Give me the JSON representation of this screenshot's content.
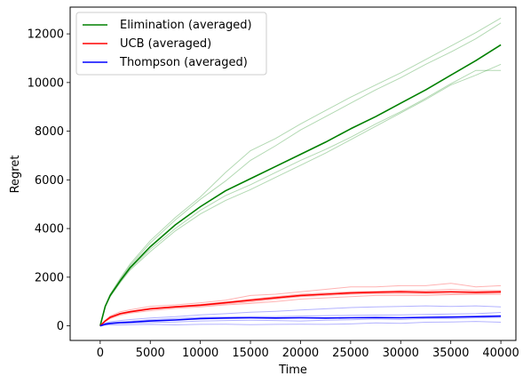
{
  "chart_data": {
    "type": "line",
    "xlabel": "Time",
    "ylabel": "Regret",
    "xlim": [
      -3000,
      41500
    ],
    "ylim": [
      -600,
      13100
    ],
    "xticks": [
      0,
      5000,
      10000,
      15000,
      20000,
      25000,
      30000,
      35000,
      40000
    ],
    "yticks": [
      0,
      2000,
      4000,
      6000,
      8000,
      10000,
      12000
    ],
    "legend_position": "top-left",
    "x": [
      0,
      500,
      1000,
      2000,
      3000,
      5000,
      7500,
      10000,
      12500,
      15000,
      17500,
      20000,
      22500,
      25000,
      27500,
      30000,
      32500,
      35000,
      37500,
      40000
    ],
    "series": [
      {
        "name": "Elimination (averaged)",
        "color": "#008000",
        "values": [
          0,
          800,
          1250,
          1850,
          2400,
          3250,
          4150,
          4900,
          5550,
          6050,
          6550,
          7050,
          7550,
          8100,
          8600,
          9150,
          9700,
          10300,
          10900,
          11550
        ],
        "runs": [
          [
            0,
            820,
            1300,
            1950,
            2550,
            3500,
            4450,
            5300,
            6300,
            7200,
            7700,
            8300,
            8850,
            9400,
            9900,
            10400,
            10950,
            11500,
            12050,
            12650
          ],
          [
            0,
            810,
            1270,
            1900,
            2480,
            3400,
            4350,
            5200,
            5950,
            6800,
            7400,
            8050,
            8600,
            9150,
            9700,
            10200,
            10750,
            11250,
            11800,
            12450
          ],
          [
            0,
            790,
            1230,
            1820,
            2350,
            3150,
            4000,
            4750,
            5350,
            5800,
            6300,
            6800,
            7250,
            7750,
            8300,
            8800,
            9350,
            9950,
            10500,
            10500
          ],
          [
            0,
            780,
            1200,
            1780,
            2300,
            3050,
            3900,
            4600,
            5150,
            5600,
            6100,
            6600,
            7100,
            7650,
            8200,
            8750,
            9300,
            9900,
            10300,
            10750
          ]
        ]
      },
      {
        "name": "UCB (averaged)",
        "color": "#ff0000",
        "values": [
          0,
          200,
          350,
          500,
          580,
          700,
          780,
          850,
          950,
          1050,
          1150,
          1250,
          1300,
          1350,
          1380,
          1400,
          1380,
          1400,
          1380,
          1400
        ],
        "runs": [
          [
            0,
            230,
            400,
            580,
            660,
            800,
            860,
            950,
            1050,
            1250,
            1300,
            1400,
            1500,
            1600,
            1600,
            1650,
            1650,
            1750,
            1600,
            1650
          ],
          [
            0,
            210,
            370,
            520,
            600,
            720,
            800,
            880,
            980,
            1100,
            1200,
            1300,
            1350,
            1400,
            1420,
            1450,
            1450,
            1500,
            1450,
            1450
          ],
          [
            0,
            190,
            330,
            480,
            560,
            680,
            760,
            820,
            900,
            980,
            1100,
            1200,
            1250,
            1300,
            1320,
            1330,
            1320,
            1330,
            1330,
            1350
          ],
          [
            0,
            180,
            300,
            440,
            520,
            620,
            720,
            780,
            860,
            920,
            1000,
            1100,
            1150,
            1200,
            1250,
            1250,
            1250,
            1280,
            1300,
            1300
          ]
        ]
      },
      {
        "name": "Thompson (averaged)",
        "color": "#0000ff",
        "values": [
          0,
          70,
          100,
          130,
          150,
          200,
          240,
          300,
          320,
          330,
          320,
          330,
          320,
          330,
          340,
          330,
          350,
          360,
          380,
          400
        ],
        "runs": [
          [
            0,
            110,
            170,
            220,
            260,
            320,
            380,
            450,
            500,
            560,
            600,
            650,
            700,
            750,
            780,
            800,
            820,
            800,
            820,
            780
          ],
          [
            0,
            80,
            120,
            160,
            190,
            250,
            300,
            350,
            360,
            380,
            380,
            400,
            420,
            430,
            440,
            450,
            470,
            490,
            500,
            550
          ],
          [
            0,
            50,
            80,
            100,
            110,
            140,
            160,
            200,
            220,
            230,
            220,
            200,
            230,
            250,
            280,
            260,
            300,
            300,
            320,
            350
          ],
          [
            0,
            30,
            40,
            40,
            50,
            60,
            40,
            60,
            70,
            50,
            60,
            70,
            60,
            80,
            120,
            100,
            150,
            160,
            180,
            150
          ]
        ]
      }
    ]
  }
}
